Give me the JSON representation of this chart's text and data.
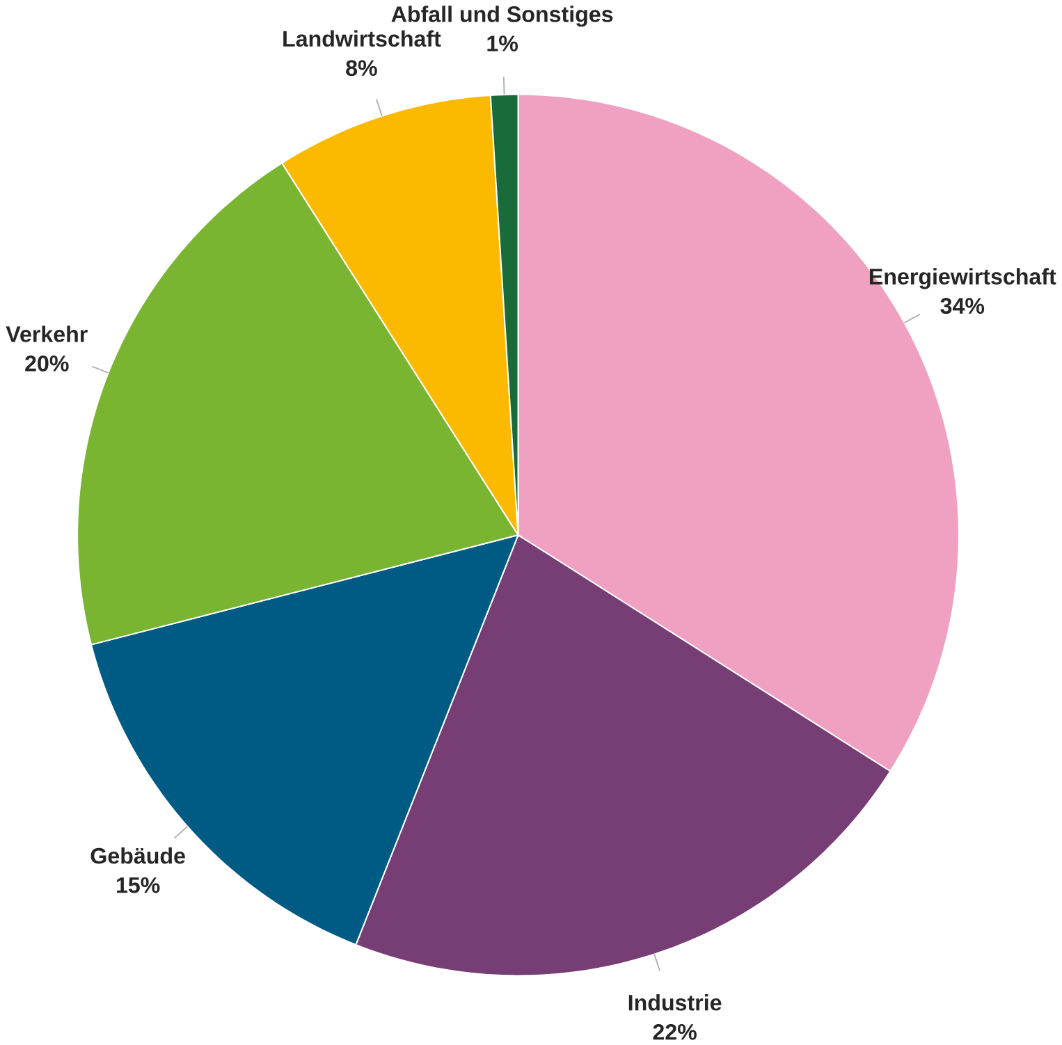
{
  "chart_data": {
    "type": "pie",
    "categories": [
      "Energiewirtschaft",
      "Industrie",
      "Gebäude",
      "Verkehr",
      "Landwirtschaft",
      "Abfall und Sonstiges"
    ],
    "values": [
      34,
      22,
      15,
      20,
      8,
      1
    ],
    "value_labels": [
      "34%",
      "22%",
      "15%",
      "20%",
      "8%",
      "1%"
    ],
    "colors": [
      "#f0a0c0",
      "#773e76",
      "#005b84",
      "#7ab532",
      "#fbb900",
      "#1a6b3a"
    ]
  }
}
